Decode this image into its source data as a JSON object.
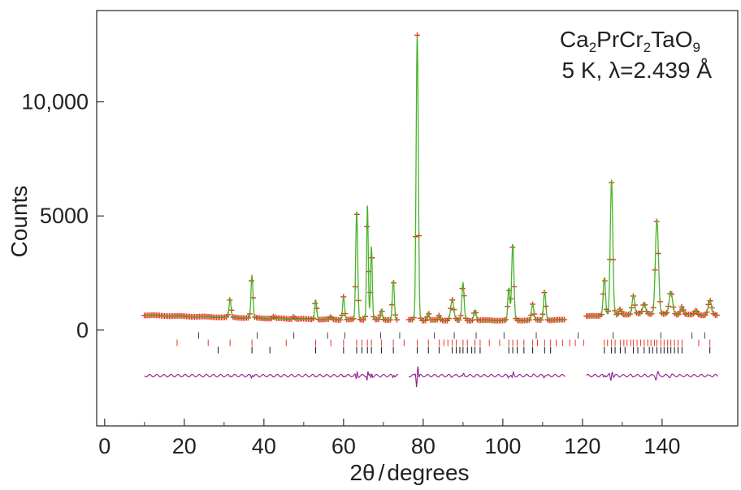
{
  "chart_data": {
    "type": "line",
    "title": "",
    "annotation": {
      "formula_parts": [
        "Ca",
        "2",
        "PrCr",
        "2",
        "TaO",
        "9"
      ],
      "conditions": "5 K, λ=2.439 Å"
    },
    "xlabel": {
      "main": "2θ",
      "sep": "/",
      "unit": "degrees"
    },
    "ylabel": "Counts",
    "xlim": [
      -2,
      159
    ],
    "ylim": [
      -4200,
      14000
    ],
    "x_ticks": [
      0,
      20,
      40,
      60,
      80,
      100,
      120,
      140
    ],
    "x_tick_labels": [
      "0",
      "20",
      "40",
      "60",
      "80",
      "100",
      "120",
      "140"
    ],
    "y_ticks": [
      0,
      5000,
      10000
    ],
    "y_tick_labels": [
      "0",
      "5000",
      "10,000"
    ],
    "segments": [
      [
        10,
        73.8
      ],
      [
        76.4,
        115.7
      ],
      [
        121,
        154
      ]
    ],
    "background": [
      [
        10,
        650
      ],
      [
        25,
        580
      ],
      [
        40,
        520
      ],
      [
        55,
        460
      ],
      [
        73,
        450
      ],
      [
        76,
        440
      ],
      [
        90,
        420
      ],
      [
        115,
        440
      ],
      [
        121,
        600
      ],
      [
        135,
        720
      ],
      [
        154,
        640
      ]
    ],
    "peaks": [
      {
        "pos": 31.5,
        "height": 800,
        "width": 0.35
      },
      {
        "pos": 37,
        "height": 1850,
        "width": 0.35
      },
      {
        "pos": 42.5,
        "height": 90,
        "width": 0.3
      },
      {
        "pos": 47.5,
        "height": 120,
        "width": 0.3
      },
      {
        "pos": 53,
        "height": 850,
        "width": 0.35
      },
      {
        "pos": 56.8,
        "height": 130,
        "width": 0.3
      },
      {
        "pos": 60,
        "height": 1000,
        "width": 0.35
      },
      {
        "pos": 63.3,
        "height": 4700,
        "width": 0.35
      },
      {
        "pos": 66,
        "height": 5000,
        "width": 0.3
      },
      {
        "pos": 67,
        "height": 3200,
        "width": 0.3
      },
      {
        "pos": 69.5,
        "height": 450,
        "width": 0.3
      },
      {
        "pos": 72.5,
        "height": 1700,
        "width": 0.35
      },
      {
        "pos": 78.5,
        "height": 12400,
        "width": 0.38
      },
      {
        "pos": 81.3,
        "height": 350,
        "width": 0.3
      },
      {
        "pos": 84,
        "height": 200,
        "width": 0.3
      },
      {
        "pos": 87.3,
        "height": 900,
        "width": 0.55
      },
      {
        "pos": 90,
        "height": 1650,
        "width": 0.4
      },
      {
        "pos": 93,
        "height": 450,
        "width": 0.4
      },
      {
        "pos": 101.5,
        "height": 1400,
        "width": 0.35
      },
      {
        "pos": 102.5,
        "height": 3300,
        "width": 0.4
      },
      {
        "pos": 107.5,
        "height": 700,
        "width": 0.4
      },
      {
        "pos": 110.5,
        "height": 1250,
        "width": 0.4
      },
      {
        "pos": 125.5,
        "height": 1650,
        "width": 0.4
      },
      {
        "pos": 127.3,
        "height": 5900,
        "width": 0.45
      },
      {
        "pos": 129.5,
        "height": 250,
        "width": 0.4
      },
      {
        "pos": 132.8,
        "height": 800,
        "width": 0.45
      },
      {
        "pos": 135.5,
        "height": 450,
        "width": 0.5
      },
      {
        "pos": 138.7,
        "height": 4100,
        "width": 0.55
      },
      {
        "pos": 142.2,
        "height": 1000,
        "width": 0.6
      },
      {
        "pos": 145,
        "height": 350,
        "width": 0.5
      },
      {
        "pos": 148.5,
        "height": 200,
        "width": 0.5
      },
      {
        "pos": 152,
        "height": 650,
        "width": 0.6
      }
    ],
    "obs_step": 0.42,
    "series": [
      {
        "role": "observed",
        "marker": "cross",
        "color": "#e8351e"
      },
      {
        "role": "calculated",
        "color": "#49b32a"
      },
      {
        "role": "difference",
        "offset": -2000,
        "color": "#8e1e8e"
      }
    ],
    "reflection_rows": [
      {
        "y": -240,
        "color": "#444444",
        "positions": [
          23.6,
          38.3,
          47.5,
          56,
          60.3,
          69.3,
          74.1,
          82.8,
          87.8,
          93.3,
          100.3,
          108.4,
          118.9,
          127.7,
          139.7,
          147.5,
          150.7
        ]
      },
      {
        "y": -560,
        "color": "#e8351e",
        "positions": [
          18.2,
          26,
          31.5,
          37,
          45.6,
          53,
          56.8,
          60,
          63.3,
          64.6,
          66,
          67,
          69.5,
          72.5,
          75.2,
          78.5,
          81.3,
          84,
          85.2,
          86.2,
          87.3,
          88.3,
          90,
          91.1,
          93,
          94.3,
          96.6,
          99.2,
          101.5,
          102.5,
          103.6,
          105.3,
          107.5,
          108.7,
          110.5,
          112,
          113.4,
          115,
          116.8,
          118.2,
          120.3,
          125.5,
          126.3,
          127.3,
          128.2,
          129.5,
          130.4,
          131.2,
          132.1,
          132.8,
          133.7,
          134.6,
          135.5,
          136.4,
          137.2,
          138.1,
          138.7,
          139.7,
          140.5,
          141.4,
          142.2,
          143.1,
          144,
          145,
          149.2,
          152
        ]
      },
      {
        "y": -880,
        "color": "#111111",
        "positions": [
          28.5,
          37,
          41.5,
          53,
          60,
          63.3,
          64.6,
          66,
          67,
          69.5,
          72.5,
          78.5,
          81.3,
          84,
          87.3,
          88.3,
          89.2,
          90,
          91.1,
          92.2,
          93,
          94.3,
          101.5,
          102.5,
          103.6,
          105.3,
          107.5,
          110.5,
          112,
          125.5,
          127.3,
          128.2,
          129.5,
          130.7,
          132.8,
          133.9,
          135.5,
          136.8,
          137.6,
          138.7,
          139.7,
          140.5,
          141.4,
          142.2,
          143.1,
          144,
          145,
          152
        ]
      }
    ],
    "grid": false,
    "legend": "none"
  }
}
